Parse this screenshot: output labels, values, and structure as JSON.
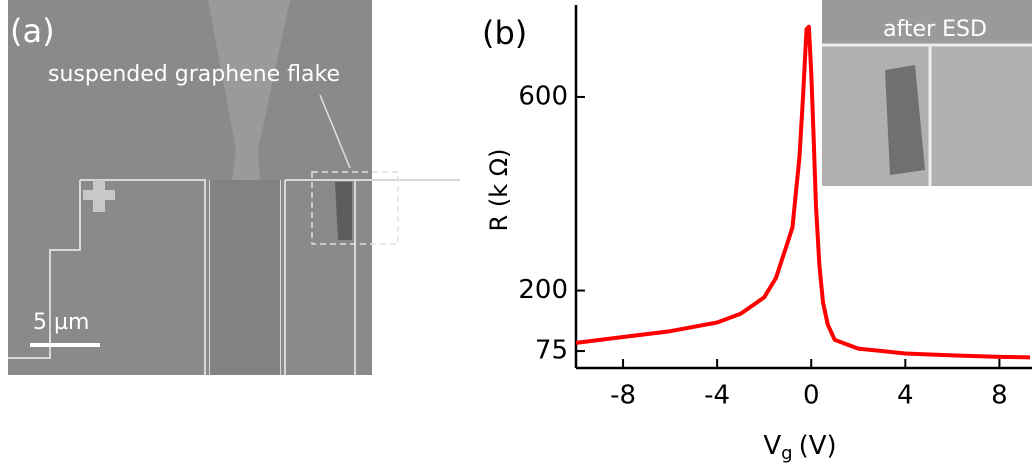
{
  "panel_a": {
    "label": "(a)",
    "annotation": "suspended graphene flake",
    "scale_bar": "5 µm"
  },
  "chart_data": {
    "type": "line",
    "panel_label": "(b)",
    "inset_label": "after ESD",
    "y_label": "R (k Ω)",
    "x_label": "V",
    "x_label_subscript": "g",
    "x_label_unit": "(V)",
    "x": [
      -10,
      -8,
      -6,
      -4,
      -3,
      -2,
      -1.5,
      -1,
      -0.8,
      -0.5,
      -0.35,
      -0.2,
      -0.1,
      0,
      0.1,
      0.2,
      0.35,
      0.5,
      0.7,
      1,
      2,
      4,
      6,
      8,
      9.3
    ],
    "series": [
      {
        "name": "R",
        "color": "#ff0000",
        "values": [
          92,
          104,
          116,
          134,
          152,
          186,
          226,
          300,
          330,
          476,
          600,
          740,
          745,
          650,
          520,
          376,
          250,
          176,
          130,
          98,
          80,
          70,
          66,
          63,
          62
        ]
      }
    ],
    "xlim": [
      -10,
      9.3
    ],
    "ylim": [
      40,
      790
    ],
    "xticks": [
      -8,
      -4,
      0,
      4,
      8
    ],
    "yticks": [
      75,
      200,
      600
    ],
    "grid": false
  }
}
